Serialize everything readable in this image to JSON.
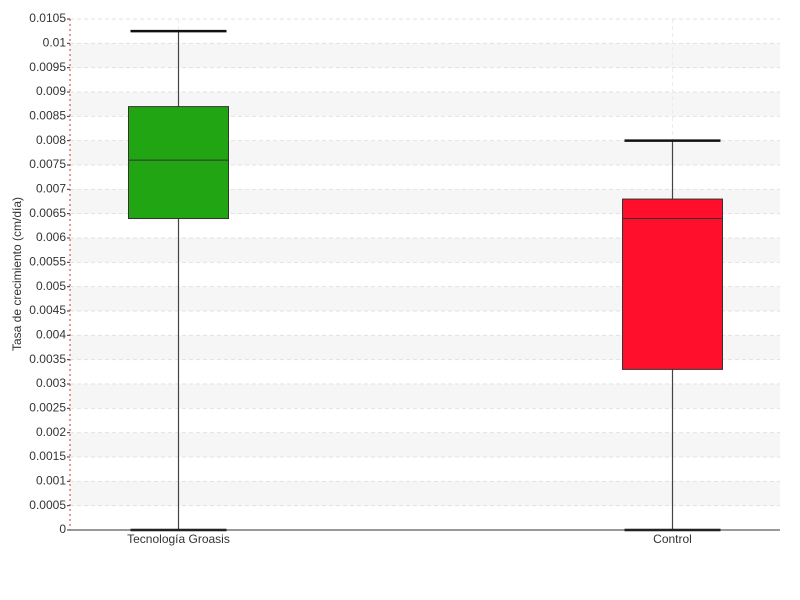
{
  "chart_data": {
    "type": "box",
    "y_label": "Tasa de crecimiento (cm/día)",
    "categories": [
      "Tecnología Groasis",
      "Control"
    ],
    "colors": [
      "#22a512",
      "#ff0f2b"
    ],
    "min": [
      0,
      0
    ],
    "q1": [
      0.0064,
      0.0033
    ],
    "median": [
      0.0076,
      0.0064
    ],
    "q3": [
      0.0087,
      0.0068
    ],
    "max": [
      0.01025,
      0.008
    ],
    "ylim": [
      0,
      0.0105
    ],
    "yticks": [
      0,
      0.0005,
      0.001,
      0.0015,
      0.002,
      0.0025,
      0.003,
      0.0035,
      0.004,
      0.0045,
      0.005,
      0.0055,
      0.006,
      0.0065,
      0.007,
      0.0075,
      0.008,
      0.0085,
      0.009,
      0.0095,
      0.01,
      0.0105
    ],
    "grid": true
  }
}
